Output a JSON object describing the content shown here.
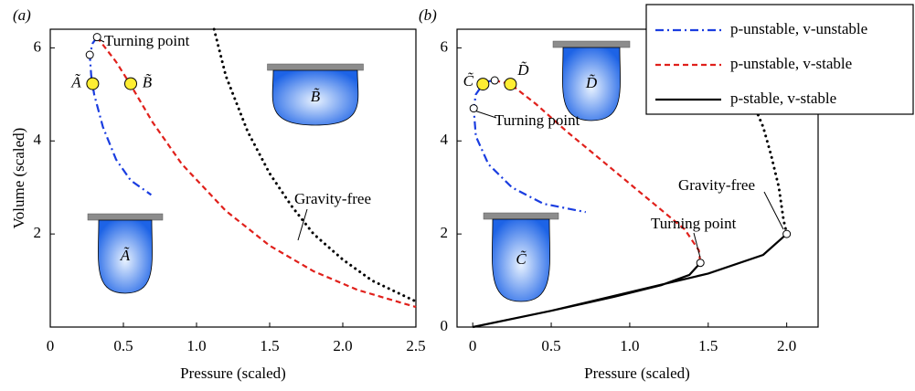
{
  "chart_data": [
    {
      "type": "line",
      "panel_label": "(a)",
      "xlabel": "Pressure (scaled)",
      "ylabel": "Volume (scaled)",
      "xlim": [
        0,
        2.5
      ],
      "ylim": [
        0,
        6.4
      ],
      "xticks": [
        0,
        0.5,
        {
          "value": 1,
          "label": "1.0"
        },
        1.5,
        {
          "value": 2,
          "label": "2.0"
        },
        2.5
      ],
      "yticks": [
        2,
        4,
        6
      ],
      "series": [
        {
          "color": "#1a3de0",
          "dash": "dashdot",
          "x": [
            0.32,
            0.29,
            0.27,
            0.28,
            0.3,
            0.36,
            0.45,
            0.55,
            0.69
          ],
          "values": [
            6.23,
            6.1,
            5.85,
            5.4,
            5.0,
            4.3,
            3.6,
            3.15,
            2.84
          ]
        },
        {
          "color": "#e0201b",
          "dash": "dashed",
          "x": [
            0.32,
            0.45,
            0.55,
            0.7,
            0.9,
            1.2,
            1.5,
            1.8,
            2.1,
            2.5
          ],
          "values": [
            6.23,
            5.7,
            5.2,
            4.4,
            3.5,
            2.5,
            1.75,
            1.2,
            0.8,
            0.43
          ]
        },
        {
          "color": "#000000",
          "dash": "dotted",
          "x": [
            1.12,
            1.2,
            1.35,
            1.5,
            1.65,
            1.8,
            2.0,
            2.2,
            2.5
          ],
          "values": [
            6.4,
            5.4,
            4.2,
            3.3,
            2.6,
            2.0,
            1.45,
            1.0,
            0.55
          ]
        }
      ],
      "markers": [
        {
          "style": "turning",
          "x": 0.27,
          "y": 5.85
        },
        {
          "style": "turning",
          "x": 0.32,
          "y": 6.23
        },
        {
          "style": "state",
          "label": "Ã",
          "x": 0.29,
          "y": 5.23
        },
        {
          "style": "state",
          "label": "B̃",
          "x": 0.55,
          "y": 5.23
        }
      ],
      "annotations": [
        "Turning point",
        "Gravity-free"
      ],
      "insets": [
        "Ã",
        "B̃"
      ]
    },
    {
      "type": "line",
      "panel_label": "(b)",
      "xlabel": "Pressure (scaled)",
      "xlim": [
        -0.1,
        2.2
      ],
      "ylim": [
        0,
        6.4
      ],
      "xticks": [
        0,
        0.5,
        {
          "value": 1,
          "label": "1.0"
        },
        1.5,
        {
          "value": 2,
          "label": "2.0"
        }
      ],
      "yticks": [
        0,
        2,
        4,
        6
      ],
      "legend": "upper right",
      "series": [
        {
          "name": "p-unstable, v-unstable",
          "color": "#1a3de0",
          "dash": "dashdot",
          "x": [
            0.14,
            0.1,
            0.065,
            0.02,
            0.006,
            0.02,
            0.1,
            0.25,
            0.45,
            0.72
          ],
          "values": [
            5.3,
            5.28,
            5.22,
            5.0,
            4.7,
            4.1,
            3.5,
            3.0,
            2.65,
            2.47
          ]
        },
        {
          "name": "p-unstable, v-stable",
          "color": "#e0201b",
          "dash": "dashed",
          "x": [
            0.14,
            0.24,
            0.4,
            0.6,
            0.85,
            1.1,
            1.35,
            1.44,
            1.45
          ],
          "values": [
            5.3,
            5.22,
            4.8,
            4.2,
            3.5,
            2.8,
            2.1,
            1.65,
            1.38
          ]
        },
        {
          "name": "p-stable, v-stable",
          "color": "#000000",
          "dash": "solid",
          "x": [
            0,
            0.5,
            0.9,
            1.2,
            1.38,
            1.45,
            null,
            0,
            0.5,
            1.0,
            1.5,
            1.85,
            2.0
          ],
          "values": [
            0,
            0.35,
            0.65,
            0.9,
            1.12,
            1.38,
            null,
            0,
            0.35,
            0.75,
            1.15,
            1.55,
            2.0
          ]
        },
        {
          "color": "#000000",
          "dash": "dotted",
          "x": [
            2.0,
            1.98,
            1.95,
            1.9,
            1.85,
            1.8
          ],
          "values": [
            2.0,
            2.3,
            3.0,
            3.7,
            4.3,
            4.7
          ]
        }
      ],
      "markers": [
        {
          "style": "turning",
          "x": 0.006,
          "y": 4.7
        },
        {
          "style": "turning",
          "x": 0.14,
          "y": 5.3
        },
        {
          "style": "turning",
          "x": 1.45,
          "y": 1.38
        },
        {
          "style": "turning",
          "x": 2.0,
          "y": 2.0
        },
        {
          "style": "state",
          "label": "C̃",
          "x": 0.065,
          "y": 5.22
        },
        {
          "style": "state",
          "label": "D̃",
          "x": 0.24,
          "y": 5.22
        }
      ],
      "annotations": [
        "Turning point",
        "Gravity-free",
        "Turning point"
      ],
      "insets": [
        "C̃",
        "D̃"
      ]
    }
  ]
}
